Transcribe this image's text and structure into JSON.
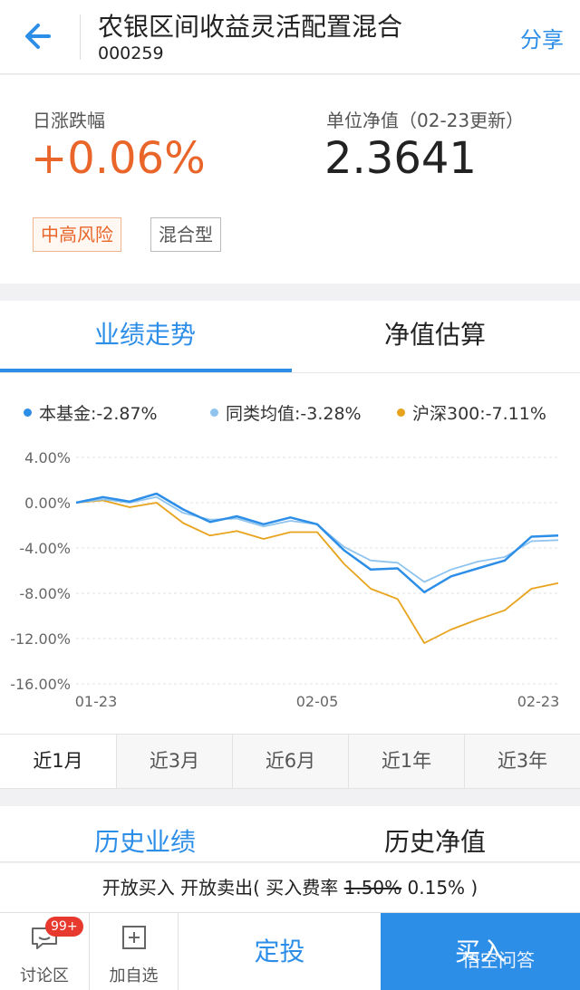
{
  "header": {
    "title": "农银区间收益灵活配置混合",
    "code": "000259",
    "share_label": "分享"
  },
  "summary": {
    "daily_change_label": "日涨跌幅",
    "daily_change_value": "+0.06%",
    "nav_label": "单位净值（02-23更新）",
    "nav_value": "2.3641",
    "tags": [
      "中高风险",
      "混合型"
    ]
  },
  "tabs": [
    "业绩走势",
    "净值估算"
  ],
  "chart_data": {
    "type": "line",
    "x_labels": [
      "01-23",
      "02-05",
      "02-23"
    ],
    "y_ticks": [
      "4.00%",
      "0.00%",
      "-4.00%",
      "-8.00%",
      "-12.00%",
      "-16.00%"
    ],
    "ylim": [
      -16,
      4
    ],
    "legend": [
      {
        "label": "本基金:-2.87%",
        "color": "#2d8ee8"
      },
      {
        "label": "同类均值:-3.28%",
        "color": "#8fc4ef"
      },
      {
        "label": "沪深300:-7.11%",
        "color": "#e8a31c"
      }
    ],
    "series": [
      {
        "name": "本基金",
        "color": "#2d8ee8",
        "values": [
          0,
          0.5,
          0.1,
          0.8,
          -0.6,
          -1.7,
          -1.2,
          -1.9,
          -1.3,
          -1.9,
          -4.2,
          -5.9,
          -5.8,
          -7.9,
          -6.5,
          -5.8,
          -5.1,
          -3.0,
          -2.9
        ]
      },
      {
        "name": "同类均值",
        "color": "#8fc4ef",
        "values": [
          0,
          0.3,
          0.0,
          0.5,
          -0.9,
          -1.5,
          -1.4,
          -2.1,
          -1.6,
          -1.9,
          -3.9,
          -5.1,
          -5.3,
          -7.0,
          -5.9,
          -5.2,
          -4.8,
          -3.4,
          -3.3
        ]
      },
      {
        "name": "沪深300",
        "color": "#e8a31c",
        "values": [
          0,
          0.2,
          -0.4,
          0.0,
          -1.8,
          -2.9,
          -2.5,
          -3.2,
          -2.6,
          -2.6,
          -5.4,
          -7.6,
          -8.5,
          -12.4,
          -11.2,
          -10.3,
          -9.5,
          -7.6,
          -7.1
        ]
      }
    ]
  },
  "periods": [
    "近1月",
    "近3月",
    "近6月",
    "近1年",
    "近3年"
  ],
  "history_tabs": [
    "历史业绩",
    "历史净值"
  ],
  "notice": {
    "prefix": "开放买入 开放卖出( 买入费率 ",
    "old_rate": "1.50%",
    "new_rate": " 0.15% )"
  },
  "bottom": {
    "forum_label": "讨论区",
    "forum_badge": "99+",
    "watch_label": "加自选",
    "sip_label": "定投",
    "buy_label": "买入",
    "watermark": "悟空问答"
  }
}
